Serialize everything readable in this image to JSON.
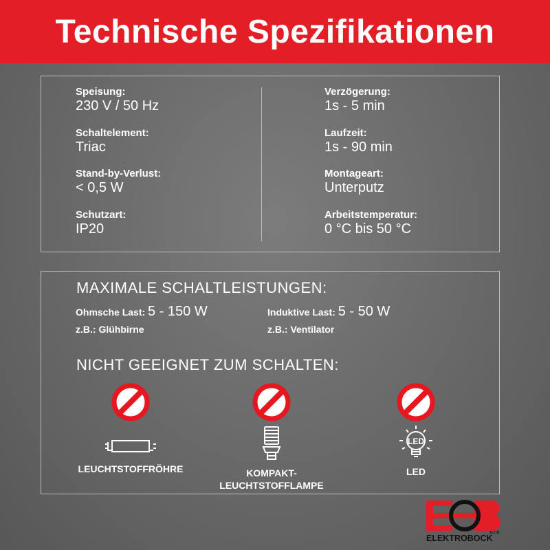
{
  "header": {
    "title": "Technische Spezifikationen"
  },
  "specs": {
    "left": [
      {
        "label": "Speisung:",
        "value": "230 V / 50 Hz"
      },
      {
        "label": "Schaltelement:",
        "value": "Triac"
      },
      {
        "label": "Stand-by-Verlust:",
        "value": "< 0,5 W"
      },
      {
        "label": "Schutzart:",
        "value": "IP20"
      }
    ],
    "right": [
      {
        "label": "Verzögerung:",
        "value": "1s - 5 min"
      },
      {
        "label": "Laufzeit:",
        "value": "1s - 90 min"
      },
      {
        "label": "Montageart:",
        "value": "Unterputz"
      },
      {
        "label": "Arbeitstemperatur:",
        "value": "0 °C bis 50 °C"
      }
    ]
  },
  "loads": {
    "title": "MAXIMALE SCHALTLEISTUNGEN:",
    "ohmic": {
      "label": "Ohmsche Last:",
      "value": "5 - 150 W",
      "example": "z.B.: Glühbirne"
    },
    "inductive": {
      "label": "Induktive Last:",
      "value": "5 - 50 W",
      "example": "z.B.: Ventilator"
    }
  },
  "unsuitable": {
    "title": "NICHT GEEIGNET ZUM SCHALTEN:",
    "items": [
      {
        "label": "LEUCHTSTOFFRÖHRE",
        "icon": "fluorescent-tube-icon"
      },
      {
        "label1": "KOMPAKT-",
        "label2": "LEUCHTSTOFFLAMPE",
        "icon": "compact-fluorescent-lamp-icon"
      },
      {
        "label": "LED",
        "icon": "led-bulb-icon",
        "icon_text": "LED"
      }
    ]
  },
  "logo": {
    "text": "ELEKTROBOCK",
    "suffix": "s.r.o."
  },
  "colors": {
    "accent": "#e41e26",
    "background": "#6a6a6a"
  }
}
